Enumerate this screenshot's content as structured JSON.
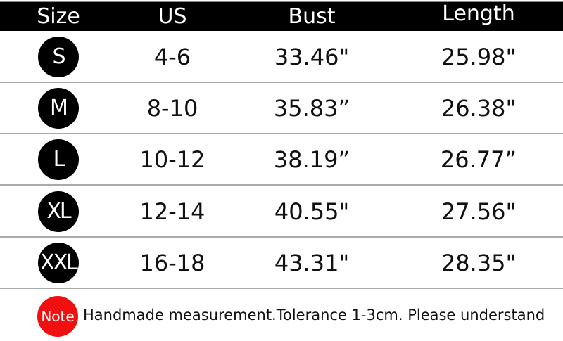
{
  "headers": [
    "Size",
    "US",
    "Bust",
    "Length"
  ],
  "rows": [
    {
      "size": "S",
      "us": "4-6",
      "bust": "33.46\"",
      "length": "25.98\""
    },
    {
      "size": "M",
      "us": "8-10",
      "bust": "35.83”",
      "length": "26.38\""
    },
    {
      "size": "L",
      "us": "10-12",
      "bust": "38.19”",
      "length": "26.77”"
    },
    {
      "size": "XL",
      "us": "12-14",
      "bust": "40.55\"",
      "length": "27.56\""
    },
    {
      "size": "XXL",
      "us": "16-18",
      "bust": "43.31\"",
      "length": "28.35\""
    }
  ],
  "note": {
    "badge": "Note",
    "text": "Handmade measurement.Tolerance 1-3cm. Please understand",
    "badge_color": "#f01010"
  }
}
